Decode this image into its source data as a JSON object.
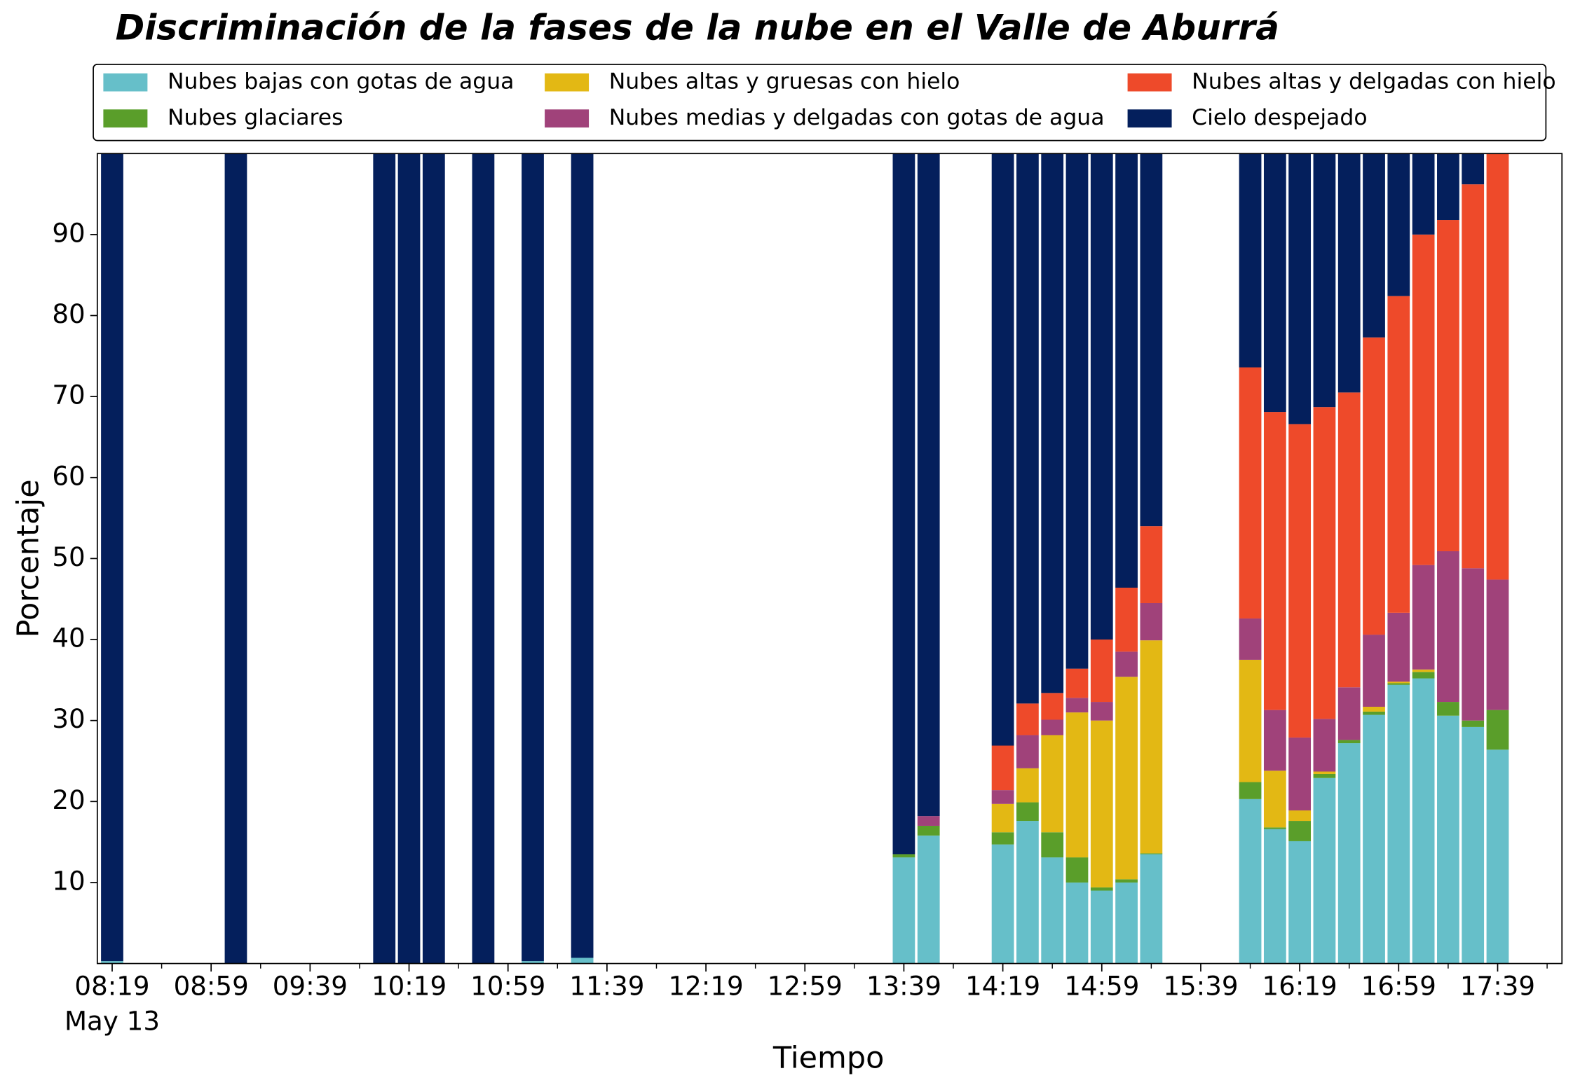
{
  "chart_data": {
    "type": "stacked_bar",
    "title": "Discriminación de la fases de la nube en el Valle de Aburrá",
    "xlabel": "Tiempo",
    "ylabel": "Porcentaje",
    "x_date_label": "May 13",
    "x": [
      "08:19",
      "09:09",
      "10:09",
      "10:19",
      "10:29",
      "10:49",
      "11:09",
      "11:29",
      "13:39",
      "13:49",
      "14:19",
      "14:29",
      "14:39",
      "14:49",
      "14:59",
      "15:09",
      "15:19",
      "15:59",
      "16:09",
      "16:19",
      "16:29",
      "16:39",
      "16:49",
      "16:59",
      "17:09",
      "17:19",
      "17:29",
      "17:39"
    ],
    "series": [
      {
        "name": "Nubes bajas con gotas de agua",
        "color": "#66bfc9",
        "values": [
          0.3,
          0,
          0,
          0,
          0,
          0,
          0.3,
          0.7,
          13.1,
          15.8,
          14.7,
          17.6,
          13.1,
          10.0,
          9.0,
          10.0,
          13.5,
          20.3,
          16.6,
          15.1,
          22.9,
          27.2,
          30.7,
          34.4,
          35.2,
          30.6,
          29.2,
          26.4
        ]
      },
      {
        "name": "Nubes glaciares",
        "color": "#5a9e2a",
        "values": [
          0,
          0,
          0,
          0,
          0,
          0,
          0,
          0,
          0.4,
          1.2,
          1.5,
          2.3,
          3.1,
          3.1,
          0.4,
          0.4,
          0.1,
          2.1,
          0.2,
          2.5,
          0.5,
          0.4,
          0.4,
          0.2,
          0.8,
          1.7,
          0.8,
          4.9
        ]
      },
      {
        "name": "Nubes altas y gruesas con hielo",
        "color": "#e3b814",
        "values": [
          0,
          0,
          0,
          0,
          0,
          0,
          0,
          0,
          0,
          0,
          3.5,
          4.2,
          12.0,
          17.9,
          20.6,
          25.0,
          26.3,
          15.1,
          7.0,
          1.3,
          0.3,
          0,
          0.6,
          0.2,
          0.3,
          0,
          0,
          0
        ]
      },
      {
        "name": "Nubes medias y delgadas con gotas de agua",
        "color": "#a0427a",
        "values": [
          0,
          0,
          0,
          0,
          0,
          0,
          0,
          0,
          0,
          1.2,
          1.7,
          4.1,
          1.9,
          1.8,
          2.3,
          3.1,
          4.6,
          5.1,
          7.5,
          9.0,
          6.5,
          6.5,
          8.9,
          8.5,
          12.9,
          18.6,
          18.8,
          16.1
        ]
      },
      {
        "name": "Nubes altas y delgadas con hielo",
        "color": "#ee4a2a",
        "values": [
          0,
          0,
          0,
          0,
          0,
          0,
          0,
          0,
          0,
          0,
          5.5,
          3.9,
          3.3,
          3.6,
          7.7,
          7.9,
          9.5,
          31.0,
          36.8,
          38.7,
          38.5,
          36.4,
          36.7,
          39.1,
          40.8,
          40.9,
          47.4,
          52.6
        ]
      },
      {
        "name": "Cielo despejado",
        "color": "#041f5c",
        "values": [
          99.7,
          100,
          100,
          100,
          100,
          100,
          99.7,
          99.3,
          86.5,
          81.8,
          73.1,
          67.9,
          66.6,
          63.6,
          60.0,
          53.6,
          46.0,
          26.4,
          31.9,
          33.4,
          31.3,
          29.5,
          22.7,
          17.6,
          10.0,
          8.2,
          3.8,
          0
        ]
      }
    ],
    "xlim": [
      "08:13",
      "18:05"
    ],
    "xticks": [
      "08:19",
      "08:59",
      "09:39",
      "10:19",
      "10:59",
      "11:39",
      "12:19",
      "12:59",
      "13:39",
      "14:19",
      "14:59",
      "15:39",
      "16:19",
      "16:59",
      "17:39"
    ],
    "ylim": [
      0,
      100
    ],
    "yticks": [
      10,
      20,
      30,
      40,
      50,
      60,
      70,
      80,
      90
    ],
    "legend": "upper center",
    "legend_columns": 3,
    "grid": false
  }
}
